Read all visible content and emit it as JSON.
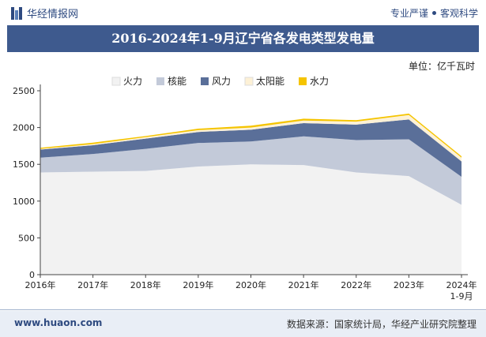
{
  "header": {
    "brand": "华经情报网",
    "slogan_left": "专业严谨",
    "slogan_right": "客观科学"
  },
  "title": "2016-2024年1-9月辽宁省各发电类型发电量",
  "unit_label": "单位：亿千瓦时",
  "footer": {
    "site": "www.huaon.com",
    "source": "数据来源：国家统计局，华经产业研究院整理"
  },
  "colors": {
    "brand": "#2e4a80",
    "title_bg": "#3e5a8e",
    "thermal": "#f2f2f2",
    "nuclear": "#c3cad9",
    "wind": "#5a6f99",
    "solar": "#fdf1d6",
    "hydro": "#f5c400"
  },
  "chart_data": {
    "type": "area",
    "stacked": true,
    "categories": [
      "2016年",
      "2017年",
      "2018年",
      "2019年",
      "2020年",
      "2021年",
      "2022年",
      "2023年",
      "2024年\n1-9月"
    ],
    "ylim": [
      0,
      2500
    ],
    "yticks": [
      0,
      500,
      1000,
      1500,
      2000,
      2500
    ],
    "legend_position": "top",
    "series": [
      {
        "name": "火力",
        "values": [
          1390,
          1400,
          1410,
          1470,
          1500,
          1490,
          1390,
          1340,
          950
        ],
        "color": "#f2f2f2"
      },
      {
        "name": "核能",
        "values": [
          200,
          240,
          300,
          320,
          310,
          390,
          440,
          500,
          380
        ],
        "color": "#c3cad9"
      },
      {
        "name": "风力",
        "values": [
          110,
          120,
          140,
          150,
          160,
          180,
          210,
          270,
          210
        ],
        "color": "#5a6f99"
      },
      {
        "name": "太阳能",
        "values": [
          10,
          15,
          20,
          25,
          30,
          35,
          40,
          60,
          50
        ],
        "color": "#fdf1d6"
      },
      {
        "name": "水力",
        "values": [
          15,
          20,
          15,
          20,
          25,
          25,
          20,
          20,
          20
        ],
        "color": "#f5c400"
      }
    ]
  }
}
